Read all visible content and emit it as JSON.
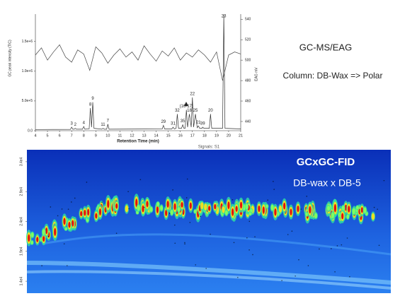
{
  "chart_data": [
    {
      "type": "line",
      "title": "GC-MS/EAG",
      "subtitle": "Column: DB-Wax => Polar",
      "x_label": "Retention Time (min)",
      "y_label": "GC peak intensity (TIC)",
      "y2_label": "EAG mV",
      "xlim": [
        4,
        21
      ],
      "xticks": [
        4,
        5,
        6,
        7,
        8,
        9,
        10,
        11,
        12,
        13,
        14,
        15,
        16,
        17,
        18,
        19,
        20,
        21
      ],
      "ylim": [
        0,
        1960000
      ],
      "yticks": [
        {
          "value": 0,
          "label": "0.0"
        },
        {
          "value": 500000,
          "label": "5.0e+5"
        },
        {
          "value": 1000000,
          "label": "1.0e+6"
        },
        {
          "value": 1500000,
          "label": "1.5e+6"
        }
      ],
      "y2lim": [
        431,
        545
      ],
      "y2ticks": [
        440,
        460,
        480,
        500,
        520,
        540
      ],
      "series": [
        {
          "name": "TIC",
          "color": "#333333",
          "x": [
            4,
            6.9,
            7.0,
            7.1,
            7.2,
            7.3,
            7.4,
            7.9,
            8.0,
            8.1,
            8.45,
            8.55,
            8.65,
            8.75,
            8.85,
            9.5,
            9.6,
            9.7,
            9.9,
            10.0,
            10.1,
            14.5,
            14.6,
            14.7,
            15.3,
            15.4,
            15.5,
            15.65,
            15.75,
            15.85,
            16.1,
            16.2,
            16.3,
            16.4,
            16.5,
            16.6,
            16.75,
            16.9,
            17.0,
            17.1,
            17.25,
            17.4,
            17.5,
            17.6,
            17.8,
            17.85,
            17.95,
            18.4,
            18.5,
            18.6,
            19.5,
            19.6,
            19.7,
            21
          ],
          "values": [
            20000,
            22000,
            60000,
            25000,
            25000,
            40000,
            25000,
            25000,
            70000,
            25000,
            30000,
            380000,
            60000,
            480000,
            40000,
            25000,
            40000,
            25000,
            25000,
            110000,
            25000,
            30000,
            90000,
            30000,
            30000,
            60000,
            30000,
            40000,
            280000,
            40000,
            40000,
            100000,
            40000,
            40000,
            350000,
            60000,
            280000,
            60000,
            560000,
            60000,
            280000,
            50000,
            80000,
            40000,
            40000,
            60000,
            40000,
            40000,
            280000,
            40000,
            40000,
            1950000,
            40000,
            30000
          ],
          "peak_labels": [
            null,
            null,
            "3",
            null,
            null,
            "2",
            null,
            null,
            "4",
            null,
            null,
            "8",
            null,
            "9",
            null,
            null,
            "11",
            null,
            null,
            "7",
            null,
            null,
            "29",
            null,
            null,
            "31",
            null,
            null,
            "32",
            null,
            null,
            "35",
            null,
            null,
            "(16-17)",
            null,
            "18",
            null,
            "22",
            null,
            "25",
            null,
            "21",
            null,
            null,
            "39",
            null,
            null,
            "20",
            null,
            null,
            "23",
            null,
            null
          ]
        },
        {
          "name": "EAG",
          "color": "#444444",
          "axis": "y2",
          "x": [
            4,
            4.5,
            5,
            5.5,
            6,
            6.5,
            7,
            7.5,
            8,
            8.5,
            9,
            9.5,
            10,
            10.5,
            11,
            11.5,
            12,
            12.5,
            13,
            13.5,
            14,
            14.5,
            15,
            15.5,
            16,
            16.5,
            17,
            17.5,
            18,
            18.5,
            19,
            19.5,
            20,
            20.5,
            21
          ],
          "values": [
            505,
            512,
            500,
            508,
            515,
            503,
            498,
            510,
            506,
            490,
            513,
            507,
            497,
            505,
            511,
            503,
            508,
            500,
            514,
            506,
            499,
            509,
            504,
            512,
            500,
            507,
            503,
            510,
            505,
            498,
            508,
            480,
            505,
            508,
            506
          ]
        }
      ]
    },
    {
      "type": "heatmap",
      "title": "GCxGC-FID",
      "subtitle": "DB-wax x DB-5",
      "panel_title": "Signals: S1",
      "yticks": [
        {
          "value": 3.4,
          "label": "3.4e4"
        },
        {
          "value": 2.9,
          "label": "2.9e4"
        },
        {
          "value": 2.4,
          "label": "2.4e4"
        },
        {
          "value": 1.9,
          "label": "1.9e4"
        },
        {
          "value": 1.4,
          "label": "1.4e4"
        }
      ],
      "ylim": [
        1.2,
        3.6
      ]
    }
  ]
}
